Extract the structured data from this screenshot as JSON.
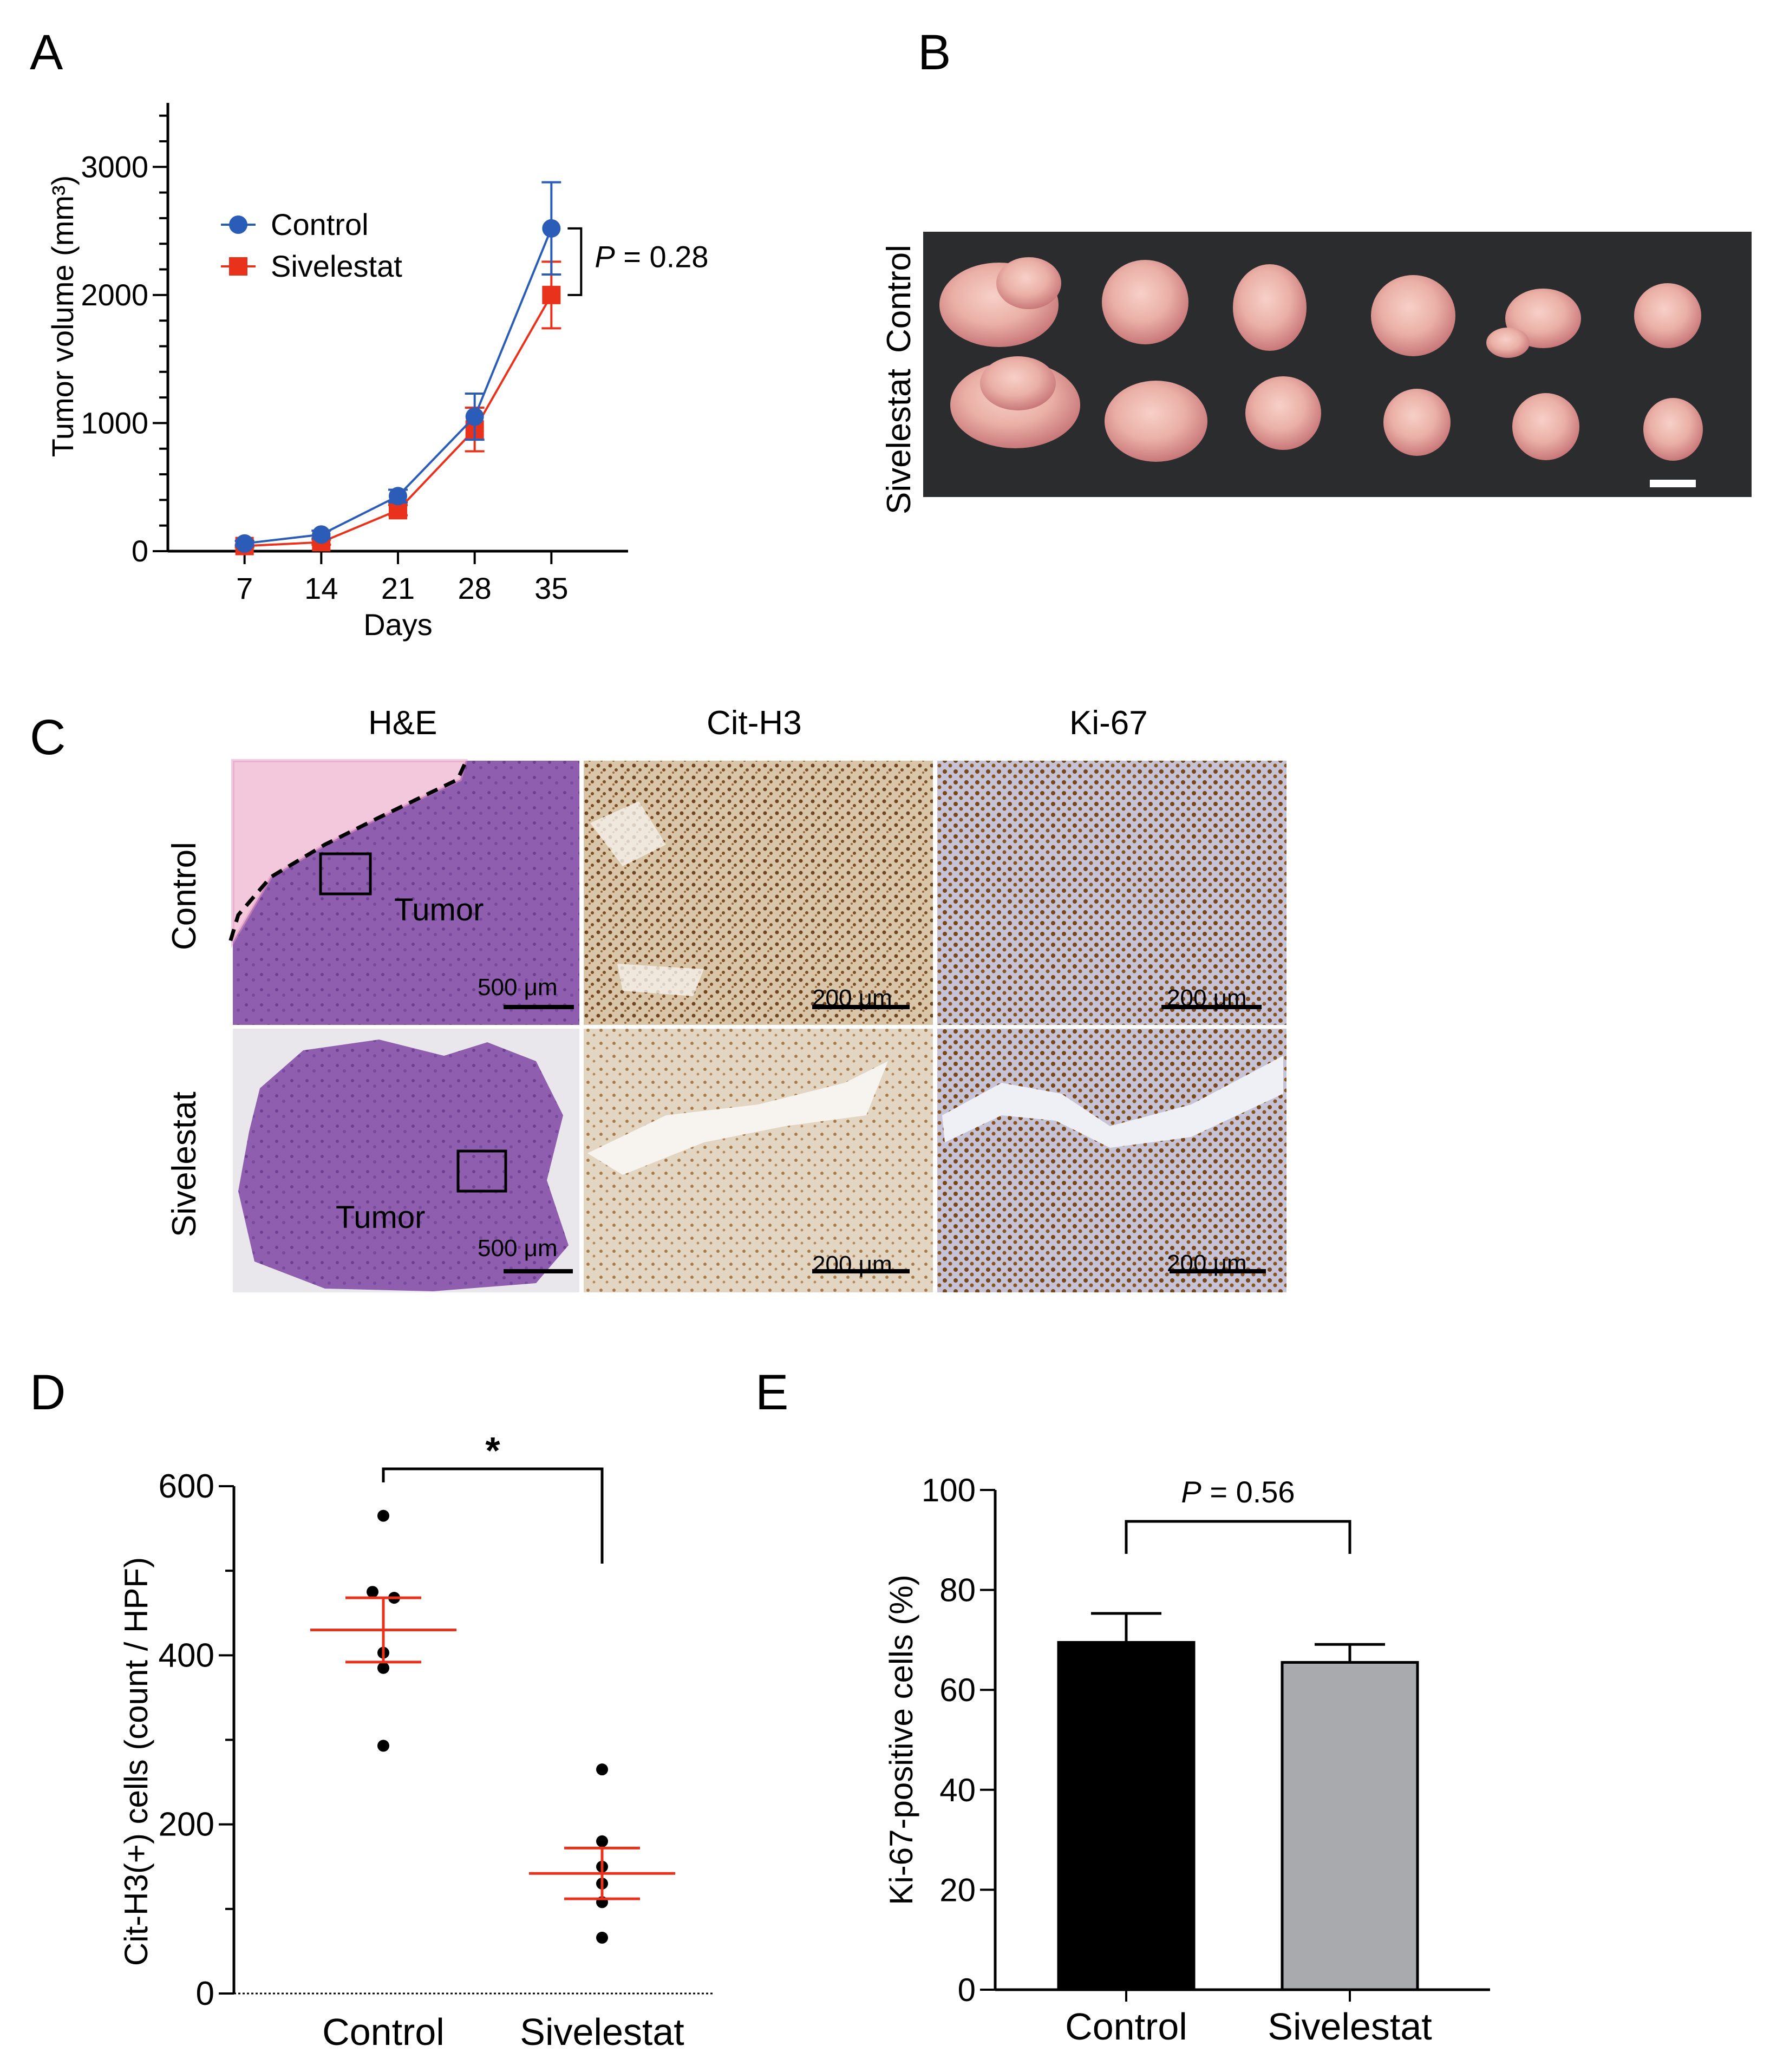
{
  "panels": {
    "a": "A",
    "b": "B",
    "c": "C",
    "d": "D",
    "e": "E"
  },
  "colors": {
    "control_blue": "#2a5cb8",
    "sivelestat_red": "#e8321b",
    "he_pink": "#c58ab8",
    "he_purple": "#7a4c9e",
    "ihc_brown": "#8a5a2b",
    "ihc_bg": "#e6dfd2",
    "bar_control": "#000000",
    "bar_sivelestat": "#a8aaae",
    "mean_line": "#e8321b"
  },
  "panel_b": {
    "row_labels": [
      "Control",
      "Sivelestat"
    ]
  },
  "panel_c": {
    "col_headers": [
      "H&E",
      "Cit-H3",
      "Ki-67"
    ],
    "row_labels": [
      "Control",
      "Sivelestat"
    ],
    "tumor_label": "Tumor",
    "scalebar_he": "500 μm",
    "scalebar_ihc": "200 μm"
  },
  "chart_data": [
    {
      "id": "A",
      "type": "line",
      "xlabel": "Days",
      "ylabel": "Tumor volume (mm³)",
      "x": [
        7,
        14,
        21,
        28,
        35
      ],
      "xticks": [
        "7",
        "14",
        "21",
        "28",
        "35"
      ],
      "ylim": [
        0,
        3500
      ],
      "yticks": [
        0,
        1000,
        2000,
        3000
      ],
      "series": [
        {
          "name": "Control",
          "marker": "circle",
          "color": "#2a5cb8",
          "values": [
            60,
            130,
            430,
            1050,
            2520
          ],
          "err": [
            20,
            30,
            50,
            180,
            360
          ]
        },
        {
          "name": "Sivelestat",
          "marker": "square",
          "color": "#e8321b",
          "values": [
            40,
            70,
            320,
            950,
            2000
          ],
          "err": [
            10,
            20,
            40,
            170,
            260
          ]
        }
      ],
      "annotation": "P = 0.28"
    },
    {
      "id": "D",
      "type": "scatter",
      "ylabel": "Cit-H3(+)  cells (count / HPF)",
      "categories": [
        "Control",
        "Sivelestat"
      ],
      "ylim": [
        0,
        600
      ],
      "yticks": [
        0,
        200,
        400,
        600
      ],
      "points": [
        [
          565,
          475,
          468,
          403,
          385,
          293
        ],
        [
          265,
          180,
          150,
          130,
          108,
          66
        ]
      ],
      "mean": [
        430,
        142
      ],
      "sem": [
        38,
        30
      ],
      "annotation": "*"
    },
    {
      "id": "E",
      "type": "bar",
      "ylabel": "Ki-67-positive cells (%)",
      "categories": [
        "Control",
        "Sivelestat"
      ],
      "values": [
        69.5,
        65.5
      ],
      "err": [
        5.8,
        3.6
      ],
      "colors": [
        "#000000",
        "#a8aaae"
      ],
      "ylim": [
        0,
        100
      ],
      "yticks": [
        0,
        20,
        40,
        60,
        80,
        100
      ],
      "annotation": "P = 0.56"
    }
  ]
}
